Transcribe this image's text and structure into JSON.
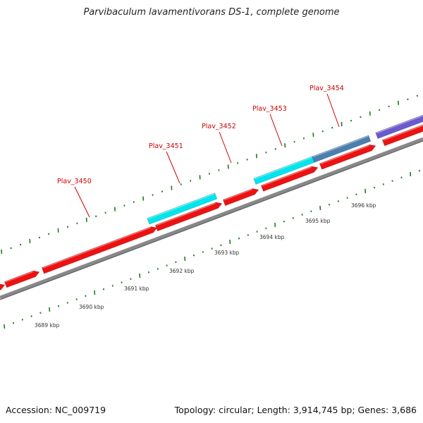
{
  "title": "Parvibaculum lavamentivorans DS-1, complete genome",
  "footer": {
    "accession": "Accession: NC_009719",
    "summary": "Topology: circular; Length: 3,914,745 bp; Genes: 3,686"
  },
  "gene_labels": [
    "Plav_3450",
    "Plav_3451",
    "Plav_3452",
    "Plav_3453",
    "Plav_3454"
  ],
  "kbp_labels": [
    "3689 kbp",
    "3690 kbp",
    "3691 kbp",
    "3692 kbp",
    "3693 kbp",
    "3694 kbp",
    "3695 kbp",
    "3696 kbp"
  ],
  "colors": {
    "forward_gene": "#ee1111",
    "cyan_feature": "#00e5ee",
    "steel_feature": "#4a7fb0",
    "purple_feature": "#6a5acd",
    "backbone": "#888888",
    "tick": "#1e7a1e",
    "gene_label": "#cc0000"
  }
}
